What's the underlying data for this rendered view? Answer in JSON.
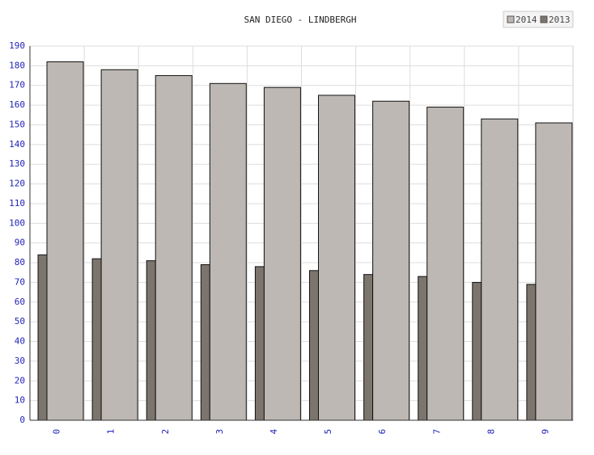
{
  "chart_data": {
    "type": "bar",
    "title": "SAN DIEGO - LINDBERGH",
    "categories": [
      "0",
      "1",
      "2",
      "3",
      "4",
      "5",
      "6",
      "7",
      "8",
      "9"
    ],
    "series": [
      {
        "name": "2014",
        "color": "#bdb8b4",
        "values": [
          182,
          178,
          175,
          171,
          169,
          165,
          162,
          159,
          153,
          151
        ]
      },
      {
        "name": "2013",
        "color": "#7c756e",
        "values": [
          84,
          82,
          81,
          79,
          78,
          76,
          74,
          73,
          70,
          69
        ]
      }
    ],
    "ylim": [
      0,
      190
    ],
    "yticks": [
      0,
      10,
      20,
      30,
      40,
      50,
      60,
      70,
      80,
      90,
      100,
      110,
      120,
      130,
      140,
      150,
      160,
      170,
      180,
      190
    ],
    "grid": true,
    "legend": "top-right"
  }
}
